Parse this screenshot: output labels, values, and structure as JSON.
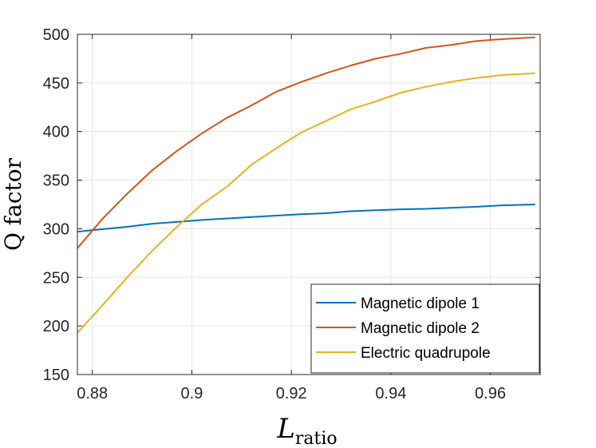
{
  "chart_data": {
    "type": "line",
    "title": "",
    "xlabel_main": "L",
    "xlabel_sub": "ratio",
    "ylabel": "Q factor",
    "xlim": [
      0.877,
      0.97
    ],
    "ylim": [
      150,
      500
    ],
    "xticks": [
      0.88,
      0.9,
      0.92,
      0.94,
      0.96
    ],
    "xtick_labels": [
      "0.88",
      "0.9",
      "0.92",
      "0.94",
      "0.96"
    ],
    "yticks": [
      150,
      200,
      250,
      300,
      350,
      400,
      450,
      500
    ],
    "ytick_labels": [
      "150",
      "200",
      "250",
      "300",
      "350",
      "400",
      "450",
      "500"
    ],
    "grid": true,
    "legend_position": "bottom-right",
    "series": [
      {
        "name": "Magnetic dipole 1",
        "color": "#0072BD",
        "x": [
          0.877,
          0.882,
          0.887,
          0.892,
          0.897,
          0.902,
          0.907,
          0.912,
          0.917,
          0.922,
          0.927,
          0.932,
          0.937,
          0.942,
          0.947,
          0.952,
          0.957,
          0.962,
          0.969
        ],
        "y": [
          297,
          299.5,
          302,
          305,
          307,
          309,
          310.5,
          312,
          313.5,
          315,
          316,
          318,
          319,
          320,
          320.5,
          321.5,
          322.5,
          324,
          325
        ]
      },
      {
        "name": "Magnetic dipole 2",
        "color": "#D95319",
        "x": [
          0.877,
          0.882,
          0.887,
          0.892,
          0.897,
          0.902,
          0.907,
          0.912,
          0.917,
          0.922,
          0.927,
          0.932,
          0.937,
          0.942,
          0.947,
          0.952,
          0.957,
          0.962,
          0.969
        ],
        "y": [
          280,
          310,
          336,
          360,
          380,
          398,
          414,
          427,
          441,
          451,
          460,
          468,
          475,
          480,
          486,
          489,
          493,
          495,
          497
        ]
      },
      {
        "name": "Electric quadrupole",
        "color": "#EDB120",
        "x": [
          0.877,
          0.882,
          0.887,
          0.892,
          0.897,
          0.902,
          0.907,
          0.912,
          0.917,
          0.922,
          0.927,
          0.932,
          0.937,
          0.942,
          0.947,
          0.952,
          0.957,
          0.962,
          0.969
        ],
        "y": [
          193,
          221,
          250,
          277,
          302,
          325,
          343,
          366,
          383,
          399,
          411,
          423,
          431,
          440,
          446,
          451,
          455,
          458,
          460
        ]
      }
    ]
  }
}
